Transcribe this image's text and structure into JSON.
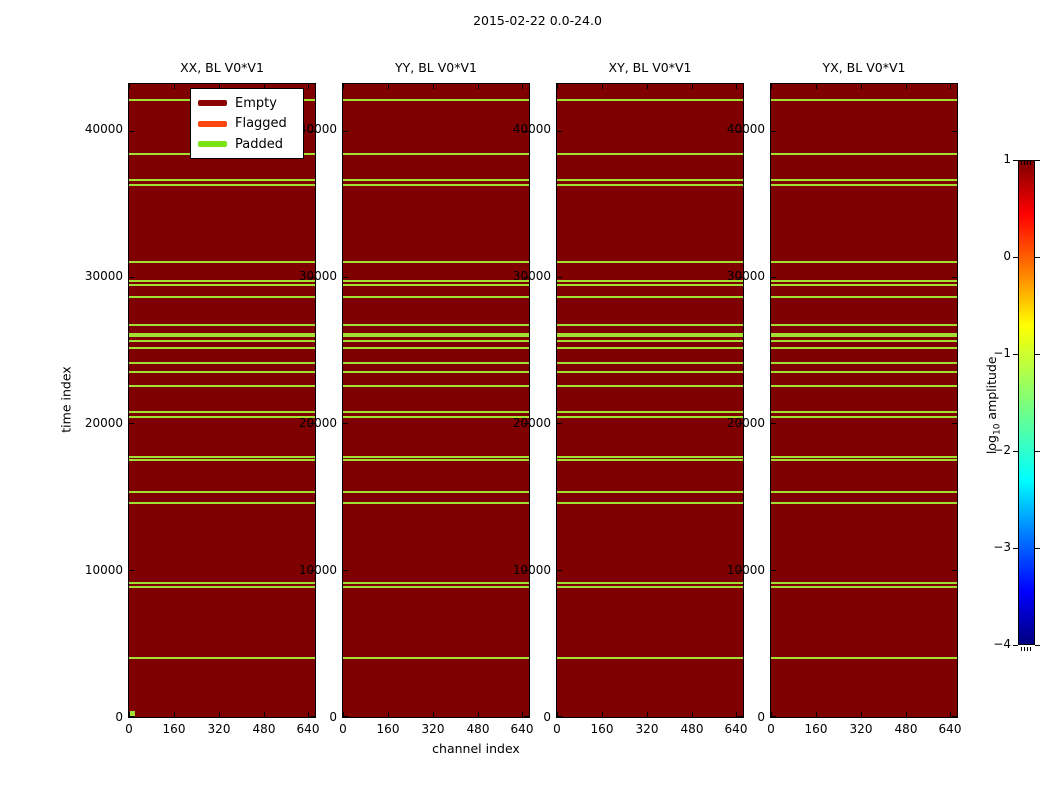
{
  "colorbar_label": {
    "pre": "log",
    "sub": "10",
    "post": " amplitude"
  },
  "chart_data": {
    "type": "heatmap",
    "title": "2015-02-22 0.0-24.0",
    "subplot_titles": [
      "XX, BL V0*V1",
      "YY, BL V0*V1",
      "XY, BL V0*V1",
      "YX, BL V0*V1"
    ],
    "xlabel": "channel index",
    "ylabel": "time index",
    "xlim": [
      0,
      660
    ],
    "ylim": [
      0,
      43200
    ],
    "xticks": [
      0,
      160,
      320,
      480,
      640
    ],
    "yticks": [
      0,
      10000,
      20000,
      30000,
      40000
    ],
    "grid": false,
    "fill_value": "Empty",
    "legend": [
      {
        "label": "Empty",
        "color": "#8b0000"
      },
      {
        "label": "Flagged",
        "color": "#ff4712"
      },
      {
        "label": "Padded",
        "color": "#7ce314"
      }
    ],
    "padded_rows_time_index": [
      {
        "t": 42200
      },
      {
        "t": 38500
      },
      {
        "t": 36700
      },
      {
        "t": 36350
      },
      {
        "t": 31100
      },
      {
        "t": 29800
      },
      {
        "t": 29550
      },
      {
        "t": 28700
      },
      {
        "t": 26800
      },
      {
        "t": 26150,
        "thick": true
      },
      {
        "t": 25700
      },
      {
        "t": 25200
      },
      {
        "t": 24200
      },
      {
        "t": 23600
      },
      {
        "t": 22650
      },
      {
        "t": 20850
      },
      {
        "t": 20500
      },
      {
        "t": 17800
      },
      {
        "t": 17550
      },
      {
        "t": 15400
      },
      {
        "t": 14600
      },
      {
        "t": 9150
      },
      {
        "t": 8900
      },
      {
        "t": 4050
      }
    ],
    "padded_block": {
      "subplot": "XX, BL V0*V1",
      "time": 0,
      "channel_start": 0,
      "channel_end": 18
    },
    "colorbar": {
      "label": "log10 amplitude",
      "colormap": "jet",
      "range": [
        -4,
        1
      ],
      "ticks": [
        1,
        0,
        -1,
        -2,
        -3,
        -4
      ]
    },
    "colors": {
      "empty_fill": "#7f0000",
      "padded_row_line": "#a2e034",
      "flagged": "#ff4712",
      "padded_swatch": "#7ce314"
    }
  }
}
